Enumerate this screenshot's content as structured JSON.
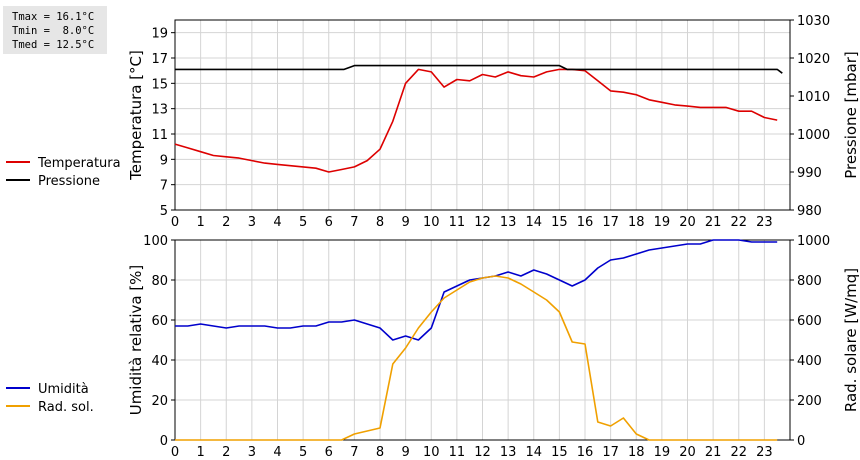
{
  "stats": {
    "tmax": "Tmax = 16.1°C",
    "tmin": "Tmin =  8.0°C",
    "tmed": "Tmed = 12.5°C"
  },
  "chart_data": [
    {
      "type": "line",
      "title": "",
      "xlabel": "",
      "ylabel": "Temperatura [°C]",
      "y2label": "Pressione [mbar]",
      "xlim": [
        0,
        24
      ],
      "xticks": [
        0,
        1,
        2,
        3,
        4,
        5,
        6,
        7,
        8,
        9,
        10,
        11,
        12,
        13,
        14,
        15,
        16,
        17,
        18,
        19,
        20,
        21,
        22,
        23
      ],
      "ylim": [
        5,
        20
      ],
      "yticks": [
        5,
        7,
        9,
        11,
        13,
        15,
        17,
        19
      ],
      "y2lim": [
        980,
        1030
      ],
      "y2ticks": [
        980,
        990,
        1000,
        1010,
        1020,
        1030
      ],
      "grid": true,
      "legend_position": "left",
      "series": [
        {
          "name": "Temperatura",
          "axis": "left",
          "color": "#dd0000",
          "x": [
            0,
            0.5,
            1,
            1.5,
            2,
            2.5,
            3,
            3.5,
            4,
            4.5,
            5,
            5.5,
            6,
            6.5,
            7,
            7.5,
            8,
            8.5,
            9,
            9.5,
            10,
            10.5,
            11,
            11.5,
            12,
            12.5,
            13,
            13.5,
            14,
            14.5,
            15,
            15.5,
            16,
            16.5,
            17,
            17.5,
            18,
            18.5,
            19,
            19.5,
            20,
            20.5,
            21,
            21.5,
            22,
            22.5,
            23,
            23.5
          ],
          "y": [
            10.2,
            9.9,
            9.6,
            9.3,
            9.2,
            9.1,
            8.9,
            8.7,
            8.6,
            8.5,
            8.4,
            8.3,
            8.0,
            8.2,
            8.4,
            8.9,
            9.8,
            12.0,
            15.0,
            16.1,
            15.9,
            14.7,
            15.3,
            15.2,
            15.7,
            15.5,
            15.9,
            15.6,
            15.5,
            15.9,
            16.1,
            16.1,
            16.0,
            15.2,
            14.4,
            14.3,
            14.1,
            13.7,
            13.5,
            13.3,
            13.2,
            13.1,
            13.1,
            13.1,
            12.8,
            12.8,
            12.3,
            12.1
          ]
        },
        {
          "name": "Pressione",
          "axis": "right",
          "color": "#000000",
          "x": [
            0,
            6.6,
            7,
            15,
            15.3,
            23.5,
            23.7
          ],
          "y": [
            1017,
            1017,
            1018,
            1018,
            1017,
            1017,
            1016
          ]
        }
      ]
    },
    {
      "type": "line",
      "title": "",
      "xlabel": "",
      "ylabel": "Umidità relativa [%]",
      "y2label": "Rad. solare [W/mq]",
      "xlim": [
        0,
        24
      ],
      "xticks": [
        0,
        1,
        2,
        3,
        4,
        5,
        6,
        7,
        8,
        9,
        10,
        11,
        12,
        13,
        14,
        15,
        16,
        17,
        18,
        19,
        20,
        21,
        22,
        23
      ],
      "ylim": [
        0,
        100
      ],
      "yticks": [
        0,
        20,
        40,
        60,
        80,
        100
      ],
      "y2lim": [
        0,
        1000
      ],
      "y2ticks": [
        0,
        200,
        400,
        600,
        800,
        1000
      ],
      "grid": true,
      "legend_position": "left",
      "series": [
        {
          "name": "Umidità",
          "axis": "left",
          "color": "#0000cc",
          "x": [
            0,
            0.5,
            1,
            1.5,
            2,
            2.5,
            3,
            3.5,
            4,
            4.5,
            5,
            5.5,
            6,
            6.5,
            7,
            7.5,
            8,
            8.5,
            9,
            9.5,
            10,
            10.5,
            11,
            11.5,
            12,
            12.5,
            13,
            13.5,
            14,
            14.5,
            15,
            15.5,
            16,
            16.5,
            17,
            17.5,
            18,
            18.5,
            19,
            19.5,
            20,
            20.5,
            21,
            21.5,
            22,
            22.5,
            23,
            23.5
          ],
          "y": [
            57,
            57,
            58,
            57,
            56,
            57,
            57,
            57,
            56,
            56,
            57,
            57,
            59,
            59,
            60,
            58,
            56,
            50,
            52,
            50,
            56,
            74,
            77,
            80,
            81,
            82,
            84,
            82,
            85,
            83,
            80,
            77,
            80,
            86,
            90,
            91,
            93,
            95,
            96,
            97,
            98,
            98,
            100,
            100,
            100,
            99,
            99,
            99
          ]
        },
        {
          "name": "Rad. sol.",
          "axis": "right",
          "color": "#f0a000",
          "x": [
            0,
            1,
            2,
            3,
            4,
            5,
            6,
            6.5,
            7,
            7.5,
            8,
            8.5,
            9,
            9.5,
            10,
            10.5,
            11,
            11.5,
            12,
            12.5,
            13,
            13.5,
            14,
            14.5,
            15,
            15.5,
            16,
            16.5,
            17,
            17.5,
            18,
            18.5,
            19,
            20,
            21,
            22,
            23,
            23.5
          ],
          "y": [
            0,
            0,
            0,
            0,
            0,
            0,
            0,
            0,
            30,
            45,
            60,
            380,
            460,
            560,
            640,
            710,
            750,
            790,
            810,
            820,
            810,
            780,
            740,
            700,
            640,
            490,
            480,
            90,
            70,
            110,
            30,
            0,
            0,
            0,
            0,
            0,
            0,
            0
          ]
        }
      ]
    }
  ]
}
